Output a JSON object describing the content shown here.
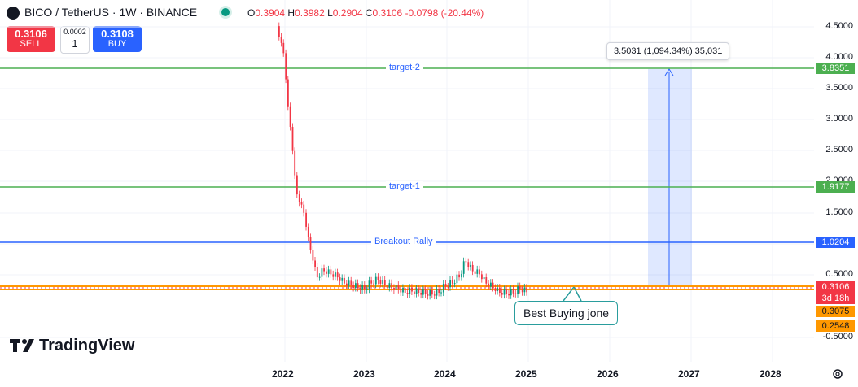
{
  "header": {
    "symbol_text": "BICO / TetherUS · 1W · BINANCE",
    "open_label": "O",
    "open_value": "0.3904",
    "high_label": "H",
    "high_value": "0.3982",
    "low_label": "L",
    "low_value": "0.2904",
    "close_label": "C",
    "close_value": "0.3106",
    "change": "-0.0798 (-20.44%)"
  },
  "trade": {
    "sell_price": "0.3106",
    "sell_label": "SELL",
    "spread": "0.0002",
    "qty": "1",
    "buy_price": "0.3108",
    "buy_label": "BUY"
  },
  "axis": {
    "y_ticks": [
      "4.5000",
      "4.0000",
      "3.5000",
      "3.0000",
      "2.5000",
      "2.0000",
      "1.5000",
      "1.0000",
      "0.5000",
      "-0.5000"
    ],
    "x_ticks": [
      "2022",
      "2023",
      "2024",
      "2025",
      "2026",
      "2027",
      "2028"
    ]
  },
  "lines": {
    "target2_label": "target-2",
    "target2_price": "3.8351",
    "target1_label": "target-1",
    "target1_price": "1.9177",
    "breakout_label": "Breakout Rally",
    "breakout_price": "1.0204"
  },
  "tags": {
    "current_price": "0.3106",
    "countdown": "3d 18h",
    "orange1": "0.3075",
    "orange2": "0.2548"
  },
  "measure": {
    "text": "3.5031 (1,094.34%) 35,031"
  },
  "callout": {
    "text": "Best Buying jone"
  },
  "brand": {
    "name": "TradingView"
  },
  "colors": {
    "green_line": "#4caf50",
    "blue_line": "#2962ff",
    "orange_line": "#ff9800",
    "red": "#f23645",
    "buy_blue": "#2962ff",
    "candle_up": "#089981",
    "candle_down": "#f23645"
  },
  "chart_data": {
    "type": "candlestick",
    "x": [
      "2021-12",
      "2022-01",
      "2022-02",
      "2022-03",
      "2022-04",
      "2022-05",
      "2022-06",
      "2022-07",
      "2022-08",
      "2022-09",
      "2022-10",
      "2022-11",
      "2022-12",
      "2023-01",
      "2023-02",
      "2023-03",
      "2023-04",
      "2023-05",
      "2023-06",
      "2023-07",
      "2023-08",
      "2023-09",
      "2023-10",
      "2023-11",
      "2023-12",
      "2024-01",
      "2024-02",
      "2024-03",
      "2024-04",
      "2024-05",
      "2024-06",
      "2024-07",
      "2024-08",
      "2024-09",
      "2024-10",
      "2024-11",
      "2024-12"
    ],
    "close": [
      4.2,
      3.0,
      1.9,
      1.6,
      1.0,
      0.55,
      0.65,
      0.6,
      0.55,
      0.45,
      0.42,
      0.38,
      0.35,
      0.45,
      0.5,
      0.42,
      0.38,
      0.35,
      0.3,
      0.32,
      0.3,
      0.28,
      0.27,
      0.3,
      0.4,
      0.45,
      0.55,
      0.8,
      0.65,
      0.6,
      0.45,
      0.38,
      0.3,
      0.28,
      0.29,
      0.35,
      0.31
    ],
    "ylim": [
      -0.6,
      4.8
    ]
  }
}
